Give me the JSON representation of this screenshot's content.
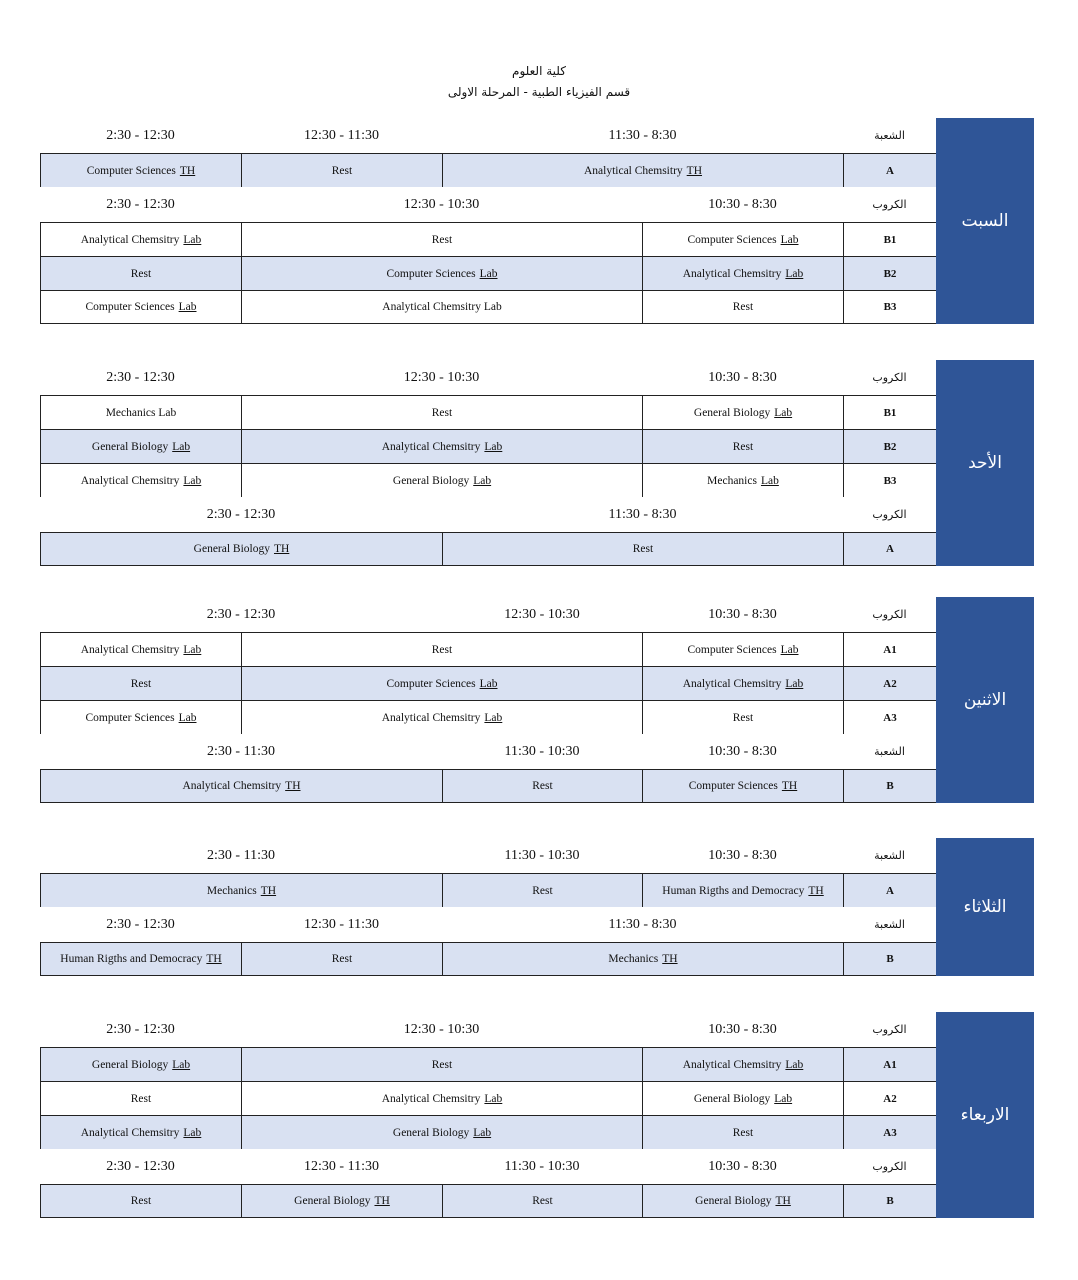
{
  "header": {
    "faculty": "كلية العلوم",
    "department": "قسم الفيزياء الطبية - المرحلة الاولى"
  },
  "colors": {
    "day_bg": "#2f5597",
    "shaded_row": "#d9e1f2"
  },
  "days": [
    {
      "name": "السبت",
      "rows": [
        {
          "type": "header",
          "code": "الشعبة",
          "cells": [
            {
              "text": "11:30 - 8:30",
              "span": 2
            },
            {
              "text": "12:30 - 11:30",
              "span": 1
            },
            {
              "text": "2:30 - 12:30",
              "span": 1
            }
          ]
        },
        {
          "type": "row",
          "shaded": true,
          "code": "A",
          "cells": [
            {
              "text": "Analytical Chemsitry",
              "tag": "TH",
              "span": 2
            },
            {
              "text": "Rest",
              "span": 1
            },
            {
              "text": "Computer Sciences",
              "tag": "TH",
              "span": 1
            }
          ]
        },
        {
          "type": "header",
          "code": "الكروب",
          "cells": [
            {
              "text": "10:30 - 8:30",
              "span": 1
            },
            {
              "text": "12:30 - 10:30",
              "span": 2
            },
            {
              "text": "2:30 - 12:30",
              "span": 1
            }
          ]
        },
        {
          "type": "row",
          "shaded": false,
          "code": "B1",
          "cells": [
            {
              "text": "Computer Sciences",
              "tag": "Lab",
              "span": 1
            },
            {
              "text": "Rest",
              "span": 2
            },
            {
              "text": "Analytical Chemsitry",
              "tag": "Lab",
              "span": 1
            }
          ]
        },
        {
          "type": "row",
          "shaded": true,
          "code": "B2",
          "cells": [
            {
              "text": "Analytical Chemsitry",
              "tag": "Lab",
              "span": 1
            },
            {
              "text": "Computer Sciences",
              "tag": "Lab",
              "span": 2
            },
            {
              "text": "Rest",
              "span": 1
            }
          ]
        },
        {
          "type": "row",
          "shaded": false,
          "code": "B3",
          "cells": [
            {
              "text": "Rest",
              "span": 1
            },
            {
              "text": "Analytical Chemsitry Lab",
              "span": 2
            },
            {
              "text": "Computer Sciences",
              "tag": "Lab",
              "span": 1
            }
          ]
        }
      ]
    },
    {
      "name": "الأحد",
      "rows": [
        {
          "type": "header",
          "code": "الكروب",
          "cells": [
            {
              "text": "10:30 - 8:30",
              "span": 1
            },
            {
              "text": "12:30 - 10:30",
              "span": 2
            },
            {
              "text": "2:30 - 12:30",
              "span": 1
            }
          ]
        },
        {
          "type": "row",
          "shaded": false,
          "code": "B1",
          "cells": [
            {
              "text": "General Biology",
              "tag": "Lab",
              "span": 1
            },
            {
              "text": "Rest",
              "span": 2
            },
            {
              "text": "Mechanics Lab",
              "span": 1
            }
          ]
        },
        {
          "type": "row",
          "shaded": true,
          "code": "B2",
          "cells": [
            {
              "text": "Rest",
              "span": 1
            },
            {
              "text": "Analytical Chemsitry",
              "tag": "Lab",
              "span": 2
            },
            {
              "text": "General Biology",
              "tag": "Lab",
              "span": 1
            }
          ]
        },
        {
          "type": "row",
          "shaded": false,
          "code": "B3",
          "cells": [
            {
              "text": "Mechanics",
              "tag": "Lab",
              "span": 1
            },
            {
              "text": "General Biology",
              "tag": "Lab",
              "span": 2
            },
            {
              "text": "Analytical Chemsitry",
              "tag": "Lab",
              "span": 1
            }
          ]
        },
        {
          "type": "header",
          "code": "الكروب",
          "cells": [
            {
              "text": "11:30 - 8:30",
              "span": 2
            },
            {
              "text": "2:30 - 12:30",
              "span": 2
            }
          ]
        },
        {
          "type": "row",
          "shaded": true,
          "code": "A",
          "cells": [
            {
              "text": "Rest",
              "span": 2
            },
            {
              "text": "General Biology",
              "tag": "TH",
              "span": 2
            }
          ]
        }
      ]
    },
    {
      "name": "الاثنين",
      "rows": [
        {
          "type": "header",
          "code": "الكروب",
          "cells": [
            {
              "text": "10:30 - 8:30",
              "span": 1
            },
            {
              "text": "12:30 - 10:30",
              "span": 1
            },
            {
              "text": "2:30 - 12:30",
              "span": 2
            }
          ]
        },
        {
          "type": "row",
          "shaded": false,
          "code": "A1",
          "cells": [
            {
              "text": "Computer Sciences",
              "tag": "Lab",
              "span": 1
            },
            {
              "text": "Rest",
              "span": 2
            },
            {
              "text": "Analytical Chemsitry",
              "tag": "Lab",
              "span": 1
            }
          ]
        },
        {
          "type": "row",
          "shaded": true,
          "code": "A2",
          "cells": [
            {
              "text": "Analytical Chemsitry",
              "tag": "Lab",
              "span": 1
            },
            {
              "text": "Computer Sciences",
              "tag": "Lab",
              "span": 2
            },
            {
              "text": "Rest",
              "span": 1
            }
          ]
        },
        {
          "type": "row",
          "shaded": false,
          "code": "A3",
          "cells": [
            {
              "text": "Rest",
              "span": 1
            },
            {
              "text": "Analytical Chemsitry",
              "tag": "Lab",
              "span": 2
            },
            {
              "text": "Computer Sciences",
              "tag": "Lab",
              "span": 1
            }
          ]
        },
        {
          "type": "header",
          "code": "الشعبة",
          "cells": [
            {
              "text": "10:30 - 8:30",
              "span": 1
            },
            {
              "text": "11:30 - 10:30",
              "span": 1
            },
            {
              "text": "2:30 - 11:30",
              "span": 2
            }
          ]
        },
        {
          "type": "row",
          "shaded": true,
          "code": "B",
          "cells": [
            {
              "text": "Computer Sciences",
              "tag": "TH",
              "span": 1
            },
            {
              "text": "Rest",
              "span": 1
            },
            {
              "text": "Analytical Chemsitry",
              "tag": "TH",
              "span": 2
            }
          ]
        }
      ]
    },
    {
      "name": "الثلاثاء",
      "rows": [
        {
          "type": "header",
          "code": "الشعبة",
          "cells": [
            {
              "text": "10:30 - 8:30",
              "span": 1
            },
            {
              "text": "11:30 - 10:30",
              "span": 1
            },
            {
              "text": "2:30 - 11:30",
              "span": 2
            }
          ]
        },
        {
          "type": "row",
          "shaded": true,
          "code": "A",
          "cells": [
            {
              "text": "Human Rigths and Democracy",
              "tag": "TH",
              "span": 1
            },
            {
              "text": "Rest",
              "span": 1
            },
            {
              "text": "Mechanics",
              "tag": "TH",
              "span": 2
            }
          ]
        },
        {
          "type": "header",
          "code": "الشعبة",
          "cells": [
            {
              "text": "11:30 - 8:30",
              "span": 2
            },
            {
              "text": "12:30 - 11:30",
              "span": 1
            },
            {
              "text": "2:30 - 12:30",
              "span": 1
            }
          ]
        },
        {
          "type": "row",
          "shaded": true,
          "code": "B",
          "cells": [
            {
              "text": "Mechanics",
              "tag": "TH",
              "span": 2
            },
            {
              "text": "Rest",
              "span": 1
            },
            {
              "text": "Human Rigths and Democracy",
              "tag": "TH",
              "span": 1
            }
          ]
        }
      ]
    },
    {
      "name": "الاربعاء",
      "rows": [
        {
          "type": "header",
          "code": "الكروب",
          "cells": [
            {
              "text": "10:30 - 8:30",
              "span": 1
            },
            {
              "text": "12:30 - 10:30",
              "span": 2
            },
            {
              "text": "2:30 - 12:30",
              "span": 1
            }
          ]
        },
        {
          "type": "row",
          "shaded": true,
          "code": "A1",
          "cells": [
            {
              "text": "Analytical Chemsitry",
              "tag": "Lab",
              "span": 1
            },
            {
              "text": "Rest",
              "span": 2
            },
            {
              "text": "General Biology",
              "tag": "Lab",
              "span": 1
            }
          ]
        },
        {
          "type": "row",
          "shaded": false,
          "code": "A2",
          "cells": [
            {
              "text": "General Biology",
              "tag": "Lab",
              "span": 1
            },
            {
              "text": "Analytical Chemsitry",
              "tag": "Lab",
              "span": 2
            },
            {
              "text": "Rest",
              "span": 1
            }
          ]
        },
        {
          "type": "row",
          "shaded": true,
          "code": "A3",
          "cells": [
            {
              "text": "Rest",
              "span": 1
            },
            {
              "text": "General Biology",
              "tag": "Lab",
              "span": 2
            },
            {
              "text": "Analytical Chemsitry",
              "tag": "Lab",
              "span": 1
            }
          ]
        },
        {
          "type": "header",
          "code": "الكروب",
          "cells": [
            {
              "text": "10:30 - 8:30",
              "span": 1
            },
            {
              "text": "11:30  - 10:30",
              "span": 1
            },
            {
              "text": "12:30 - 11:30",
              "span": 1
            },
            {
              "text": "2:30 - 12:30",
              "span": 1
            }
          ]
        },
        {
          "type": "row",
          "shaded": true,
          "code": "B",
          "cells": [
            {
              "text": "General Biology",
              "tag": "TH",
              "span": 1
            },
            {
              "text": "Rest",
              "span": 1
            },
            {
              "text": "General Biology",
              "tag": "TH",
              "span": 1
            },
            {
              "text": "Rest",
              "span": 1
            }
          ]
        }
      ]
    }
  ]
}
